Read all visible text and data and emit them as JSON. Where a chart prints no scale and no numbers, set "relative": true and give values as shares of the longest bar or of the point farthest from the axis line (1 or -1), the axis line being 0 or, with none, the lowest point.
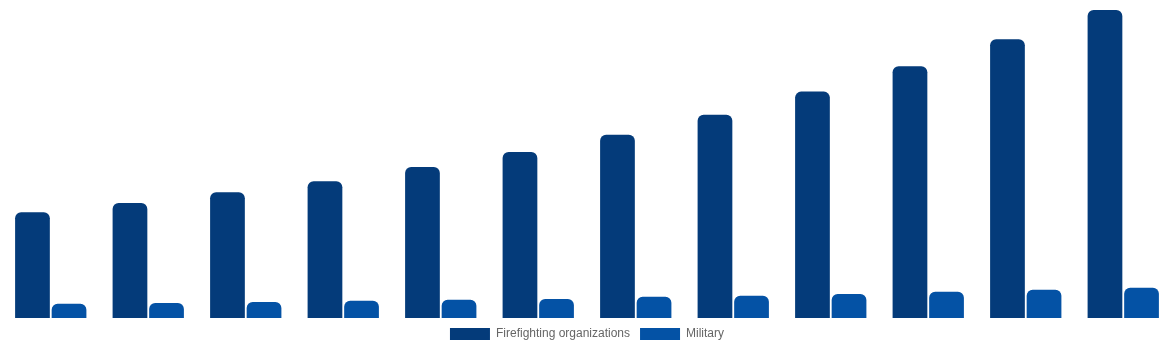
{
  "chart_data": {
    "type": "bar",
    "relative": true,
    "legend": "bottom",
    "categories": [
      null,
      null,
      null,
      null,
      null,
      null,
      null,
      null,
      null,
      null,
      null,
      null
    ],
    "series": [
      {
        "name": "Firefighting organizations",
        "color": "#043b7a",
        "values": [
          0.343,
          0.373,
          0.408,
          0.444,
          0.49,
          0.539,
          0.595,
          0.66,
          0.735,
          0.817,
          0.905,
          1
        ]
      },
      {
        "name": "Military",
        "color": "#0452a5",
        "values": [
          0.046,
          0.049,
          0.052,
          0.056,
          0.059,
          0.062,
          0.069,
          0.072,
          0.078,
          0.085,
          0.092,
          0.098
        ]
      }
    ]
  }
}
